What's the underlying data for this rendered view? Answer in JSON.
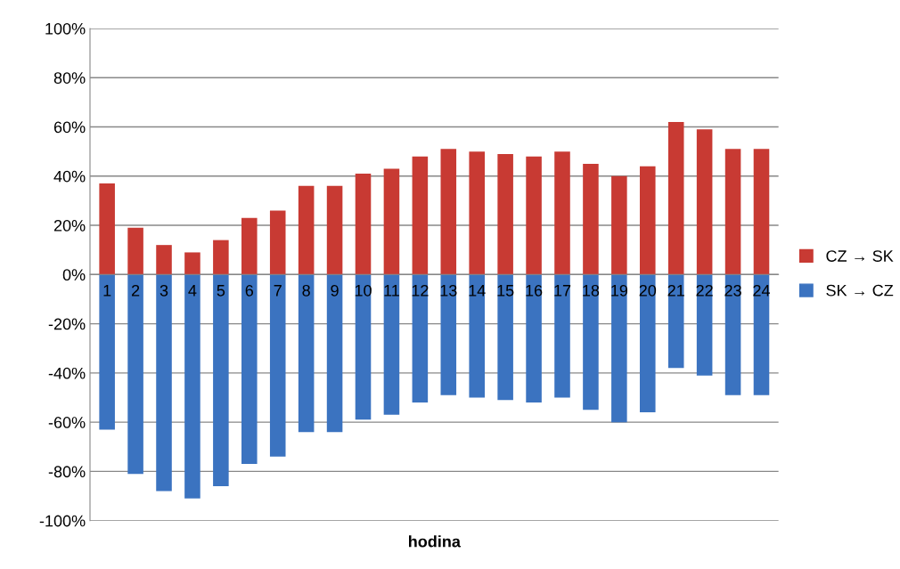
{
  "chart_data": {
    "type": "bar",
    "stacked": true,
    "xlabel": "hodina",
    "categories": [
      "1",
      "2",
      "3",
      "4",
      "5",
      "6",
      "7",
      "8",
      "9",
      "10",
      "11",
      "12",
      "13",
      "14",
      "15",
      "16",
      "17",
      "18",
      "19",
      "20",
      "21",
      "22",
      "23",
      "24"
    ],
    "series": [
      {
        "name": "CZ → SK",
        "color": "#c83a33",
        "values": [
          37,
          19,
          12,
          9,
          14,
          23,
          26,
          36,
          36,
          41,
          43,
          48,
          51,
          50,
          49,
          48,
          50,
          45,
          40,
          44,
          62,
          59,
          51,
          51
        ]
      },
      {
        "name": "SK → CZ",
        "color": "#3b73c0",
        "values": [
          -63,
          -81,
          -88,
          -91,
          -86,
          -77,
          -74,
          -64,
          -64,
          -59,
          -57,
          -52,
          -49,
          -50,
          -51,
          -52,
          -50,
          -55,
          -60,
          -56,
          -38,
          -41,
          -49,
          -49
        ]
      }
    ],
    "ylim": [
      -100,
      100
    ],
    "yticks": [
      {
        "value": -100,
        "label": "-100%"
      },
      {
        "value": -80,
        "label": "-80%"
      },
      {
        "value": -60,
        "label": "-60%"
      },
      {
        "value": -40,
        "label": "-40%"
      },
      {
        "value": -20,
        "label": "-20%"
      },
      {
        "value": 0,
        "label": "0%"
      },
      {
        "value": 20,
        "label": "20%"
      },
      {
        "value": 40,
        "label": "40%"
      },
      {
        "value": 60,
        "label": "60%"
      },
      {
        "value": 80,
        "label": "80%"
      },
      {
        "value": 100,
        "label": "100%"
      }
    ],
    "grid": "y",
    "legend": "right"
  }
}
